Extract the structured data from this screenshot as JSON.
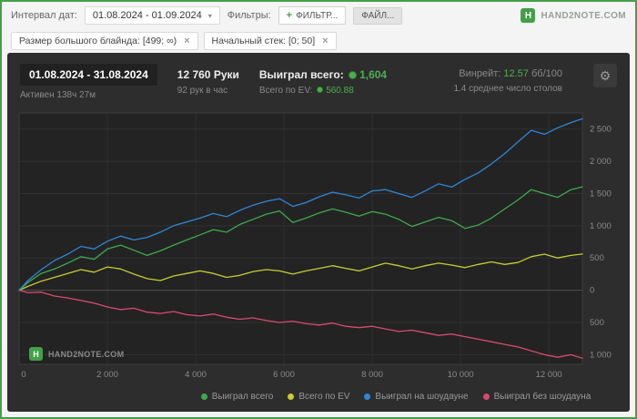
{
  "topbar": {
    "interval_label": "Интервал дат:",
    "interval_value": "01.08.2024 - 01.09.2024",
    "filters_label": "Фильтры:",
    "filter_button": "ФИЛЬТР...",
    "file_button": "ФАЙЛ...",
    "brand": "HAND2NOTE.COM"
  },
  "chips": [
    {
      "label": "Размер большого блайнда: [499; ∞)"
    },
    {
      "label": "Начальный стек: [0; 50]"
    }
  ],
  "summary": {
    "date_range": "01.08.2024 - 31.08.2024",
    "active_time": "Активен 138ч 27м",
    "hands": "12 760 Руки",
    "hands_per_hour": "92 рук в час",
    "won_label": "Выиграл всего:",
    "won_value": "1,604",
    "ev_label": "Всего по EV:",
    "ev_value": "560.88",
    "winrate_label": "Винрейт:",
    "winrate_value": "12.57",
    "winrate_unit": "бб/100",
    "tables_avg": "1.4 среднее число столов"
  },
  "watermark": "HAND2NOTE.COM",
  "colors": {
    "accent": "#4caf50",
    "panel": "#2d2d2d",
    "plot": "#232323"
  },
  "chart_data": {
    "type": "line",
    "title": "",
    "xlabel": "",
    "ylabel": "",
    "x_max": 12760,
    "y_domain": [
      -1150,
      2750
    ],
    "x_ticks": [
      0,
      2000,
      4000,
      6000,
      8000,
      10000,
      12000
    ],
    "x_tick_labels": [
      "0",
      "2 000",
      "4 000",
      "6 000",
      "8 000",
      "10 000",
      "12 000"
    ],
    "y_ticks": [
      2500,
      2000,
      1500,
      1000,
      500,
      0,
      -500,
      -1000
    ],
    "y_tick_labels": [
      "2 500",
      "2 000",
      "1 500",
      "1 000",
      "500",
      "0",
      "500",
      "1 000"
    ],
    "grid": true,
    "legend_position": "bottom",
    "x": [
      0,
      200,
      500,
      800,
      1100,
      1400,
      1700,
      2000,
      2300,
      2600,
      2900,
      3200,
      3500,
      3800,
      4100,
      4400,
      4700,
      5000,
      5300,
      5600,
      5900,
      6200,
      6500,
      6800,
      7100,
      7400,
      7700,
      8000,
      8300,
      8600,
      8900,
      9200,
      9500,
      9800,
      10100,
      10400,
      10700,
      11000,
      11300,
      11600,
      11900,
      12200,
      12500,
      12760
    ],
    "series": [
      {
        "name": "Выиграл всего",
        "color": "#3fa94c",
        "values": [
          0,
          120,
          260,
          330,
          420,
          520,
          480,
          640,
          700,
          620,
          540,
          610,
          700,
          780,
          860,
          940,
          900,
          1020,
          1100,
          1180,
          1230,
          1050,
          1120,
          1200,
          1260,
          1210,
          1150,
          1220,
          1180,
          1100,
          990,
          1060,
          1130,
          1080,
          960,
          1010,
          1120,
          1260,
          1400,
          1560,
          1500,
          1440,
          1560,
          1604
        ]
      },
      {
        "name": "Всего по EV",
        "color": "#c9cc33",
        "values": [
          0,
          60,
          140,
          200,
          260,
          320,
          280,
          360,
          330,
          250,
          180,
          150,
          220,
          260,
          300,
          260,
          200,
          230,
          290,
          320,
          300,
          250,
          300,
          340,
          380,
          340,
          300,
          360,
          420,
          380,
          330,
          380,
          420,
          390,
          350,
          400,
          440,
          400,
          430,
          520,
          560,
          500,
          540,
          561
        ]
      },
      {
        "name": "Выиграл на шоудауне",
        "color": "#2e86d8",
        "values": [
          0,
          150,
          320,
          460,
          560,
          680,
          640,
          760,
          840,
          780,
          820,
          900,
          1000,
          1060,
          1120,
          1190,
          1140,
          1240,
          1320,
          1380,
          1420,
          1300,
          1360,
          1450,
          1520,
          1480,
          1430,
          1540,
          1560,
          1500,
          1440,
          1540,
          1650,
          1600,
          1720,
          1820,
          1960,
          2120,
          2300,
          2480,
          2420,
          2520,
          2600,
          2660
        ]
      },
      {
        "name": "Выиграл без шоудауна",
        "color": "#d84a6d",
        "values": [
          0,
          -40,
          -30,
          -90,
          -120,
          -160,
          -200,
          -260,
          -300,
          -280,
          -340,
          -360,
          -330,
          -380,
          -400,
          -370,
          -420,
          -450,
          -430,
          -470,
          -500,
          -480,
          -520,
          -540,
          -510,
          -560,
          -580,
          -560,
          -600,
          -640,
          -620,
          -660,
          -700,
          -680,
          -720,
          -760,
          -800,
          -840,
          -880,
          -940,
          -1000,
          -1040,
          -1000,
          -1056
        ]
      }
    ]
  }
}
